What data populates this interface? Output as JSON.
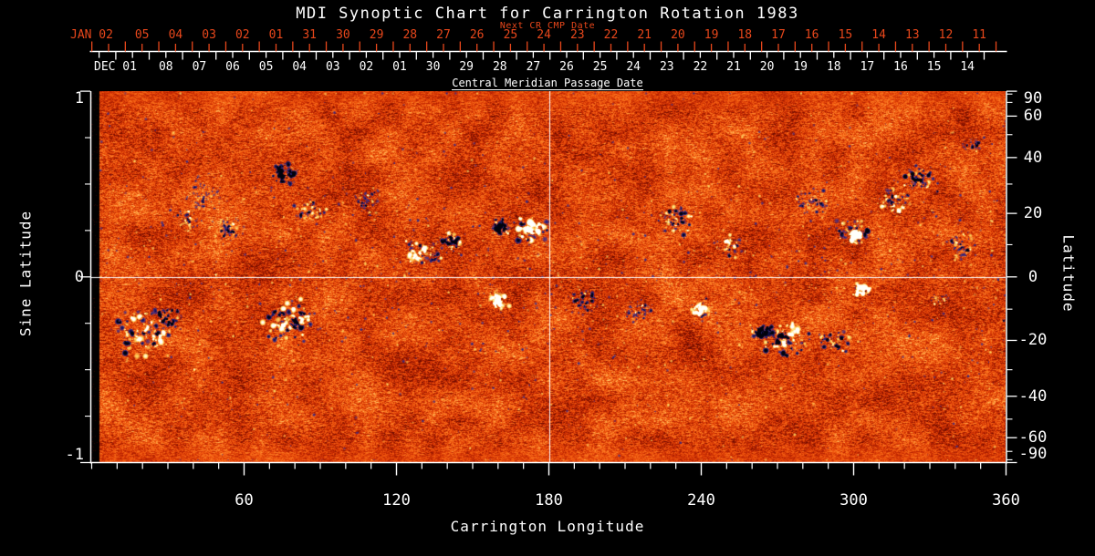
{
  "title": "MDI Synoptic Chart for Carrington Rotation 1983",
  "colors": {
    "background": "#000000",
    "axis": "#ffffff",
    "next_cr_accent": "#e8471b",
    "quiet_sun_orange": "#e8520c",
    "negative_polarity": "#10104a",
    "positive_polarity": "#ffffff"
  },
  "top_axis": {
    "label": "Next CR CMP Date",
    "month_label": "JAN 02",
    "day_labels": [
      "05",
      "04",
      "03",
      "02",
      "01",
      "31",
      "30",
      "29",
      "28",
      "27",
      "26",
      "25",
      "24",
      "23",
      "22",
      "21",
      "20",
      "19",
      "18",
      "17",
      "16",
      "15",
      "14",
      "13",
      "12",
      "11"
    ]
  },
  "cmp_axis": {
    "label": "Central Meridian Passage Date",
    "month_label": "DEC 01",
    "day_labels": [
      "08",
      "07",
      "06",
      "05",
      "04",
      "03",
      "02",
      "01",
      "30",
      "29",
      "28",
      "27",
      "26",
      "25",
      "24",
      "23",
      "22",
      "21",
      "20",
      "19",
      "18",
      "17",
      "16",
      "15",
      "14"
    ]
  },
  "x_axis": {
    "label": "Carrington Longitude",
    "major_ticks": [
      "60",
      "120",
      "180",
      "240",
      "300",
      "360"
    ],
    "minor_tick_step_deg": 10,
    "range": [
      0,
      360
    ]
  },
  "y_axis_left": {
    "label": "Sine Latitude",
    "major_ticks": [
      "1",
      "0",
      "-1"
    ],
    "minor_ticks": [
      0.75,
      0.5,
      0.25,
      -0.25,
      -0.5,
      -0.75
    ],
    "range": [
      -1,
      1
    ]
  },
  "y_axis_right": {
    "label": "Latitude",
    "major_ticks": [
      "90",
      "60",
      "40",
      "20",
      "0",
      "-20",
      "-40",
      "-60",
      "-90"
    ],
    "minor_ticks": [
      80,
      70,
      50,
      30,
      10,
      -10,
      -30,
      -50,
      -70,
      -80
    ]
  },
  "reference_lines": {
    "longitude_deg": 180,
    "sine_latitude": 0
  },
  "chart_data": {
    "type": "heatmap",
    "title": "MDI Synoptic Chart for Carrington Rotation 1983",
    "xlabel": "Carrington Longitude",
    "x_range": [
      0,
      360
    ],
    "ylabel_left": "Sine Latitude",
    "y_range_sine": [
      -1,
      1
    ],
    "ylabel_right": "Latitude",
    "y_range_deg": [
      -90,
      90
    ],
    "grid": "white crosshair at longitude 180 and sine latitude 0",
    "colormap": {
      "strong_negative_field": "black with dark-blue fringe",
      "quiet_sun": "orange-red speckle noise",
      "strong_positive_field": "white with yellow fringe"
    },
    "data_gap_longitude_deg": [
      0,
      3
    ],
    "active_regions": [
      {
        "lon": 20,
        "lat": -17,
        "ext": 20,
        "neg": 0.5,
        "amp": 1.0
      },
      {
        "lon": 30,
        "lat": -12,
        "ext": 10,
        "neg": 0.8,
        "amp": 0.8
      },
      {
        "lon": 43,
        "lat": 26,
        "ext": 13,
        "neg": 0.7,
        "amp": 0.55
      },
      {
        "lon": 38,
        "lat": 18,
        "ext": 10,
        "neg": 0.55,
        "amp": 0.55
      },
      {
        "lon": 54,
        "lat": 15,
        "ext": 10,
        "neg": 0.6,
        "amp": 0.6
      },
      {
        "lon": 77,
        "lat": 34,
        "ext": 9,
        "neg": 0.85,
        "amp": 0.85
      },
      {
        "lon": 78,
        "lat": -14,
        "ext": 18,
        "neg": 0.55,
        "amp": 1.0
      },
      {
        "lon": 86,
        "lat": 21,
        "ext": 11,
        "neg": 0.5,
        "amp": 0.7
      },
      {
        "lon": 108,
        "lat": 24,
        "ext": 10,
        "neg": 0.7,
        "amp": 0.55
      },
      {
        "lon": 131,
        "lat": 8,
        "ext": 14,
        "neg": 0.35,
        "amp": 0.9
      },
      {
        "lon": 142,
        "lat": 11,
        "ext": 8,
        "neg": 0.75,
        "amp": 0.8
      },
      {
        "lon": 160,
        "lat": -7,
        "ext": 7,
        "neg": 0.15,
        "amp": 0.9
      },
      {
        "lon": 173,
        "lat": 15,
        "ext": 11,
        "neg": 0.25,
        "amp": 1.1
      },
      {
        "lon": 162,
        "lat": 16,
        "ext": 8,
        "neg": 0.85,
        "amp": 0.9
      },
      {
        "lon": 194,
        "lat": -7,
        "ext": 11,
        "neg": 0.8,
        "amp": 0.7
      },
      {
        "lon": 216,
        "lat": -10,
        "ext": 8,
        "neg": 0.7,
        "amp": 0.6
      },
      {
        "lon": 230,
        "lat": 18,
        "ext": 14,
        "neg": 0.65,
        "amp": 0.8
      },
      {
        "lon": 240,
        "lat": -10,
        "ext": 6,
        "neg": 0.2,
        "amp": 0.9
      },
      {
        "lon": 252,
        "lat": 10,
        "ext": 10,
        "neg": 0.5,
        "amp": 0.7
      },
      {
        "lon": 273,
        "lat": -19,
        "ext": 16,
        "neg": 0.4,
        "amp": 1.0
      },
      {
        "lon": 264,
        "lat": -17,
        "ext": 7,
        "neg": 0.85,
        "amp": 0.9
      },
      {
        "lon": 293,
        "lat": -20,
        "ext": 10,
        "neg": 0.75,
        "amp": 0.8
      },
      {
        "lon": 300,
        "lat": 14,
        "ext": 12,
        "neg": 0.55,
        "amp": 0.9
      },
      {
        "lon": 301,
        "lat": 13,
        "ext": 4,
        "neg": 0.05,
        "amp": 1.1
      },
      {
        "lon": 284,
        "lat": 24,
        "ext": 11,
        "neg": 0.7,
        "amp": 0.7
      },
      {
        "lon": 316,
        "lat": 24,
        "ext": 12,
        "neg": 0.45,
        "amp": 0.8
      },
      {
        "lon": 303,
        "lat": -4,
        "ext": 6,
        "neg": 0.25,
        "amp": 0.9
      },
      {
        "lon": 325,
        "lat": 32,
        "ext": 10,
        "neg": 0.8,
        "amp": 0.8
      },
      {
        "lon": 343,
        "lat": 10,
        "ext": 11,
        "neg": 0.7,
        "amp": 0.6
      },
      {
        "lon": 347,
        "lat": 45,
        "ext": 8,
        "neg": 0.75,
        "amp": 0.55
      },
      {
        "lon": 334,
        "lat": -7,
        "ext": 7,
        "neg": 0.6,
        "amp": 0.5
      }
    ]
  }
}
